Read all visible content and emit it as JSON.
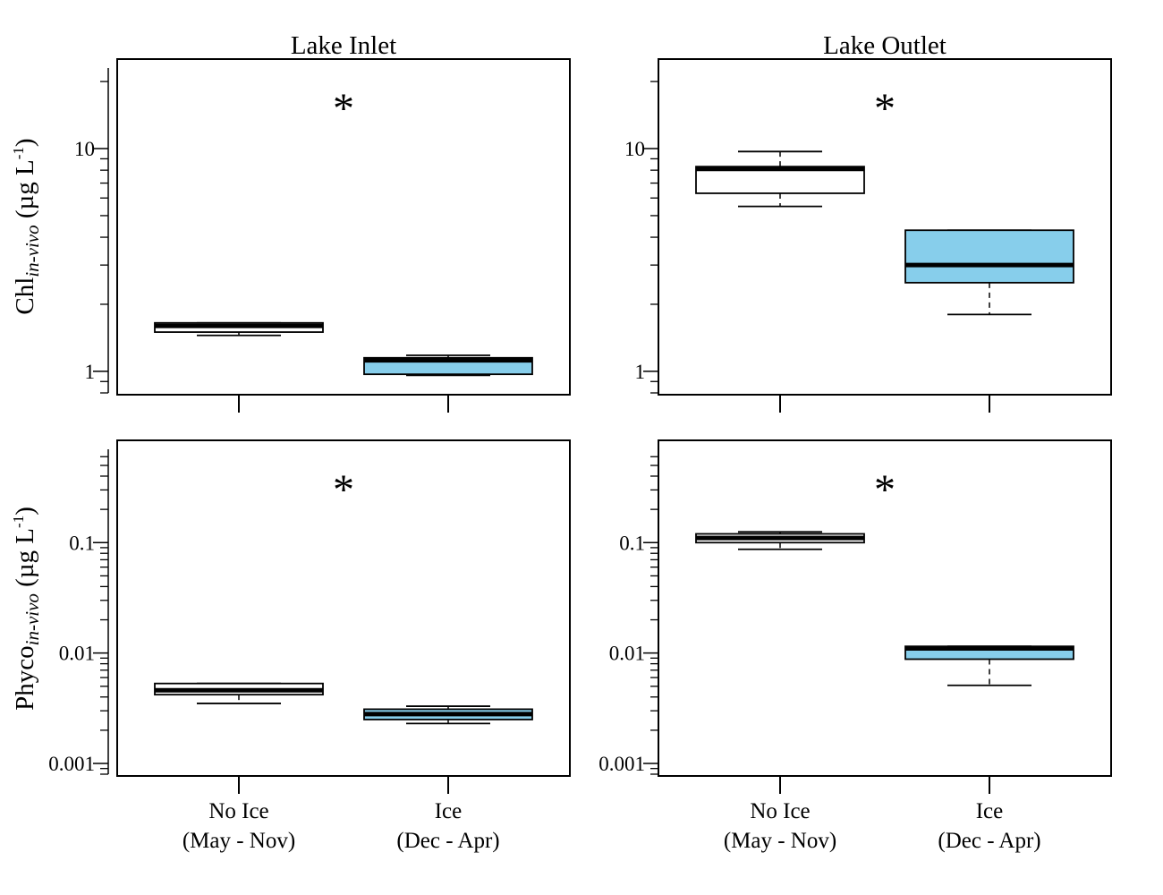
{
  "figure": {
    "column_titles": [
      "Lake Inlet",
      "Lake Outlet"
    ],
    "row_ylabels": [
      {
        "main": "Chl",
        "subscript": "in-vivo",
        "unit_open": " (µg L",
        "superscript": "-1",
        "unit_close": ")"
      },
      {
        "main": "Phyco",
        "subscript": "in-vivo",
        "unit_open": " (µg L",
        "superscript": "-1",
        "unit_close": ")"
      }
    ],
    "category_labels": [
      {
        "line1": "No Ice",
        "line2": "(May - Nov)"
      },
      {
        "line1": "Ice",
        "line2": "(Dec - Apr)"
      }
    ],
    "significance_marker": "*"
  },
  "colors": {
    "no_ice_fill": "#ffffff",
    "ice_fill": "#87ceeb",
    "line": "#000000"
  },
  "chart_data": [
    {
      "type": "box",
      "column": "Lake Inlet",
      "row": "Chl",
      "yscale": "log",
      "ylim": [
        0.8,
        23
      ],
      "yticks": [
        1,
        10
      ],
      "ytick_labels": [
        "1",
        "10"
      ],
      "significant": true,
      "boxes": [
        {
          "category": "No Ice (May - Nov)",
          "whisker_low": 1.45,
          "q1": 1.5,
          "median": 1.6,
          "q3": 1.65,
          "whisker_high": 1.65
        },
        {
          "category": "Ice (Dec - Apr)",
          "whisker_low": 0.96,
          "q1": 0.97,
          "median": 1.12,
          "q3": 1.15,
          "whisker_high": 1.18
        }
      ]
    },
    {
      "type": "box",
      "column": "Lake Outlet",
      "row": "Chl",
      "yscale": "log",
      "ylim": [
        0.8,
        23
      ],
      "yticks": [
        1,
        10
      ],
      "ytick_labels": [
        "1",
        "10"
      ],
      "significant": true,
      "boxes": [
        {
          "category": "No Ice (May - Nov)",
          "whisker_low": 5.5,
          "q1": 6.3,
          "median": 8.1,
          "q3": 8.3,
          "whisker_high": 9.7
        },
        {
          "category": "Ice (Dec - Apr)",
          "whisker_low": 1.8,
          "q1": 2.5,
          "median": 3.0,
          "q3": 4.3,
          "whisker_high": 4.3
        }
      ]
    },
    {
      "type": "box",
      "column": "Lake Inlet",
      "row": "Phyco",
      "yscale": "log",
      "ylim": [
        0.0008,
        0.7
      ],
      "yticks": [
        0.001,
        0.01,
        0.1
      ],
      "ytick_labels": [
        "0.001",
        "0.01",
        "0.1"
      ],
      "significant": true,
      "boxes": [
        {
          "category": "No Ice (May - Nov)",
          "whisker_low": 0.0035,
          "q1": 0.0042,
          "median": 0.0046,
          "q3": 0.0053,
          "whisker_high": 0.0053
        },
        {
          "category": "Ice (Dec - Apr)",
          "whisker_low": 0.0023,
          "q1": 0.0025,
          "median": 0.0028,
          "q3": 0.0031,
          "whisker_high": 0.0033
        }
      ]
    },
    {
      "type": "box",
      "column": "Lake Outlet",
      "row": "Phyco",
      "yscale": "log",
      "ylim": [
        0.0008,
        0.7
      ],
      "yticks": [
        0.001,
        0.01,
        0.1
      ],
      "ytick_labels": [
        "0.001",
        "0.01",
        "0.1"
      ],
      "significant": true,
      "boxes": [
        {
          "category": "No Ice (May - Nov)",
          "whisker_low": 0.087,
          "q1": 0.1,
          "median": 0.11,
          "q3": 0.12,
          "whisker_high": 0.125
        },
        {
          "category": "Ice (Dec - Apr)",
          "whisker_low": 0.0051,
          "q1": 0.0088,
          "median": 0.011,
          "q3": 0.0115,
          "whisker_high": 0.0115
        }
      ]
    }
  ]
}
